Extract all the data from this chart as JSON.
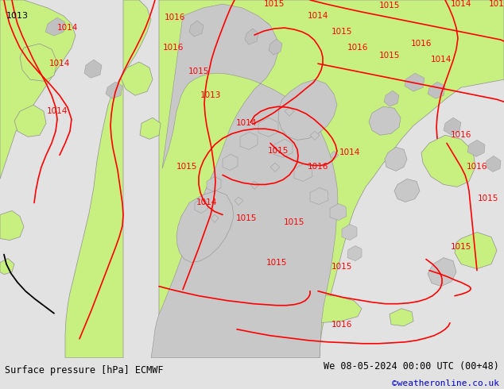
{
  "title_left": "Surface pressure [hPa] ECMWF",
  "title_right": "We 08-05-2024 00:00 UTC (00+48)",
  "credit": "©weatheronline.co.uk",
  "bg_color": "#e2e2e2",
  "sea_color": "#e2e2e2",
  "land_green": "#c8f080",
  "land_gray": "#c8c8c8",
  "contour_red": "#ff0000",
  "credit_color": "#0000cc",
  "lw": 1.2
}
